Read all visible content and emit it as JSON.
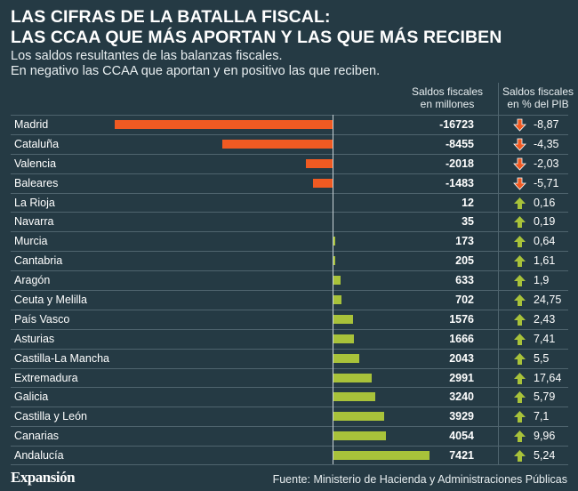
{
  "title_line1": "LAS CIFRAS DE LA BATALLA FISCAL:",
  "title_line2": "LAS CCAA QUE MÁS APORTAN Y LAS QUE MÁS RECIBEN",
  "subtitle_line1": "Los saldos resultantes de las balanzas fiscales.",
  "subtitle_line2": "En negativo las CCAA que aportan y en positivo las que reciben.",
  "col_head_saldos_1": "Saldos fiscales",
  "col_head_saldos_2": "en millones",
  "col_head_pct_1": "Saldos fiscales",
  "col_head_pct_2": "en % del PIB",
  "brand": "Expansión",
  "source": "Fuente: Ministerio de Hacienda y Administraciones Públicas",
  "colors": {
    "negative": "#f05a22",
    "positive": "#a8c23a",
    "arrow_down": "#f05a22",
    "arrow_up": "#a8c23a",
    "background": "#253a44"
  },
  "icons": {
    "down": "arrow-down-icon",
    "up": "arrow-up-icon"
  },
  "chart_data": {
    "type": "bar",
    "orientation": "horizontal",
    "categories": [
      "Madrid",
      "Cataluña",
      "Valencia",
      "Baleares",
      "La Rioja",
      "Navarra",
      "Murcia",
      "Cantabria",
      "Aragón",
      "Ceuta y Melilla",
      "País Vasco",
      "Asturias",
      "Castilla-La Mancha",
      "Extremadura",
      "Galicia",
      "Castilla y León",
      "Canarias",
      "Andalucía"
    ],
    "series": [
      {
        "name": "Saldos fiscales en millones",
        "values": [
          -16723,
          -8455,
          -2018,
          -1483,
          12,
          35,
          173,
          205,
          633,
          702,
          1576,
          1666,
          2043,
          2991,
          3240,
          3929,
          4054,
          7421
        ]
      },
      {
        "name": "Saldos fiscales en % del PIB",
        "values": [
          -8.87,
          -4.35,
          -2.03,
          -5.71,
          0.16,
          0.19,
          0.64,
          1.61,
          1.9,
          24.75,
          2.43,
          7.41,
          5.5,
          17.64,
          5.79,
          7.1,
          9.96,
          5.24
        ]
      }
    ],
    "value_labels": [
      "-16723",
      "-8455",
      "-2018",
      "-1483",
      "12",
      "35",
      "173",
      "205",
      "633",
      "702",
      "1576",
      "1666",
      "2043",
      "2991",
      "3240",
      "3929",
      "4054",
      "7421"
    ],
    "pct_labels": [
      "-8,87",
      "-4,35",
      "-2,03",
      "-5,71",
      "0,16",
      "0,19",
      "0,64",
      "1,61",
      "1,9",
      "24,75",
      "2,43",
      "7,41",
      "5,5",
      "17,64",
      "5,79",
      "7,1",
      "9,96",
      "5,24"
    ],
    "xlim": [
      -16723,
      7421
    ],
    "grid": false,
    "legend": "none"
  }
}
